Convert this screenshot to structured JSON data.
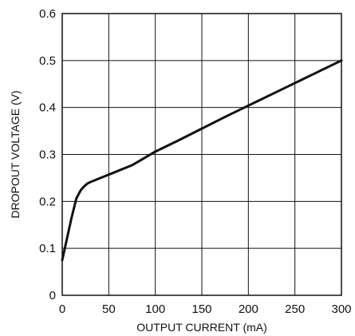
{
  "chart_data": {
    "type": "line",
    "title": "",
    "xlabel": "OUTPUT CURRENT (mA)",
    "ylabel": "DROPOUT VOLTAGE (V)",
    "xlim": [
      0,
      300
    ],
    "ylim": [
      0,
      0.6
    ],
    "xticks": [
      0,
      50,
      100,
      150,
      200,
      250,
      300
    ],
    "yticks": [
      0,
      0.1,
      0.2,
      0.3,
      0.4,
      0.5,
      0.6
    ],
    "xtick_labels": [
      "0",
      "50",
      "100",
      "150",
      "200",
      "250",
      "300"
    ],
    "ytick_labels": [
      "0",
      "0.1",
      "0.2",
      "0.3",
      "0.4",
      "0.5",
      "0.6"
    ],
    "grid": true,
    "series": [
      {
        "x": [
          0,
          5,
          10,
          15,
          18,
          20,
          23,
          27,
          30,
          40,
          50,
          75,
          100,
          125,
          150,
          175,
          200,
          225,
          250,
          275,
          300
        ],
        "y": [
          0.075,
          0.12,
          0.165,
          0.205,
          0.217,
          0.224,
          0.231,
          0.238,
          0.241,
          0.249,
          0.257,
          0.277,
          0.306,
          0.33,
          0.355,
          0.38,
          0.404,
          0.428,
          0.452,
          0.476,
          0.5
        ],
        "color": "#111111"
      }
    ]
  }
}
